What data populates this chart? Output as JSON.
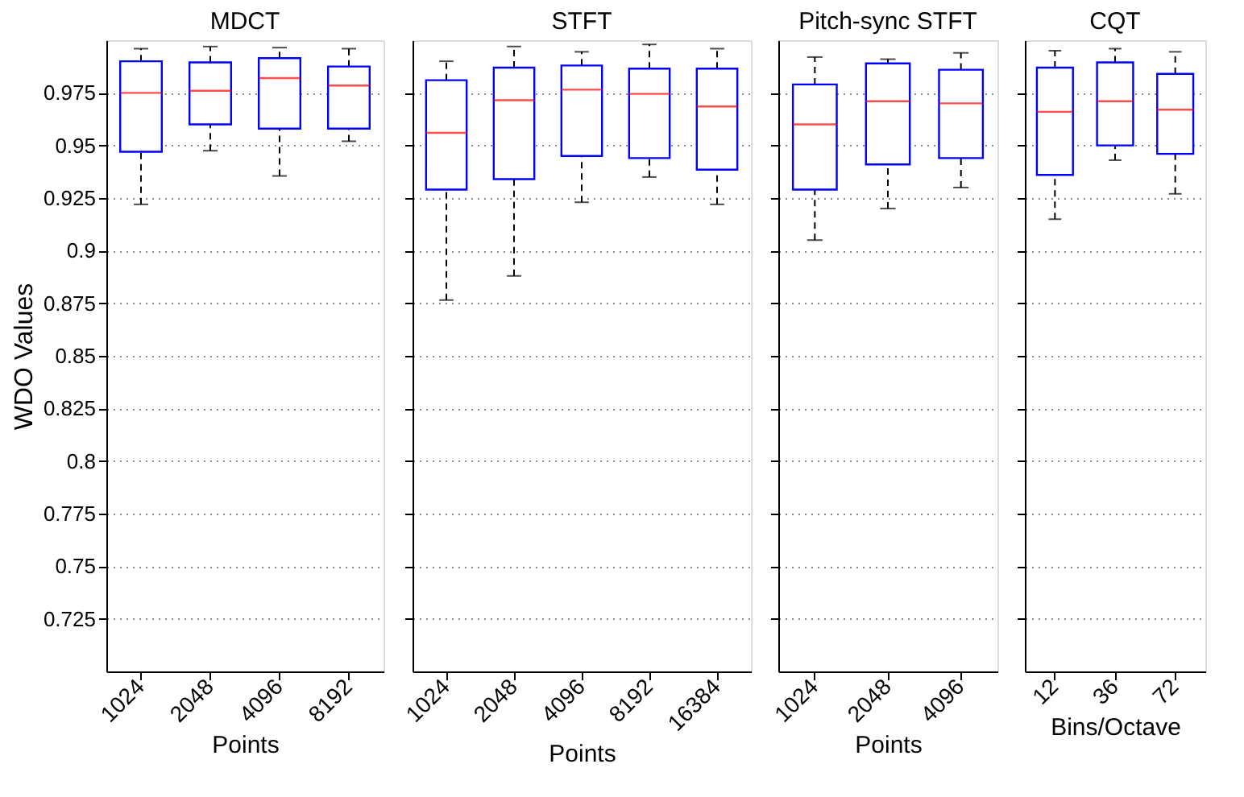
{
  "chart_data": [
    {
      "type": "box",
      "title": "MDCT",
      "xlabel": "Points",
      "ylabel": "WDO  Values",
      "categories": [
        "1024",
        "2048",
        "4096",
        "8192"
      ],
      "ylim": [
        0.7,
        1.0
      ],
      "yticks": [
        0.725,
        0.75,
        0.775,
        0.8,
        0.825,
        0.85,
        0.875,
        0.9,
        0.925,
        0.95,
        0.975
      ],
      "grid": "y",
      "boxes": [
        {
          "low": 0.922,
          "q1": 0.947,
          "median": 0.975,
          "q3": 0.99,
          "high": 0.996
        },
        {
          "low": 0.9475,
          "q1": 0.96,
          "median": 0.976,
          "q3": 0.9895,
          "high": 0.997
        },
        {
          "low": 0.9355,
          "q1": 0.958,
          "median": 0.982,
          "q3": 0.9915,
          "high": 0.9965
        },
        {
          "low": 0.952,
          "q1": 0.958,
          "median": 0.9785,
          "q3": 0.9875,
          "high": 0.996
        }
      ]
    },
    {
      "type": "box",
      "title": "STFT",
      "xlabel": "Points",
      "categories": [
        "1024",
        "2048",
        "4096",
        "8192",
        "16384"
      ],
      "ylim": [
        0.7,
        1.0
      ],
      "yticks": [
        0.725,
        0.75,
        0.775,
        0.8,
        0.825,
        0.85,
        0.875,
        0.9,
        0.925,
        0.95,
        0.975
      ],
      "grid": "y",
      "tick_labels": "x",
      "boxes": [
        {
          "low": 0.8765,
          "q1": 0.929,
          "median": 0.956,
          "q3": 0.981,
          "high": 0.99
        },
        {
          "low": 0.888,
          "q1": 0.934,
          "median": 0.9715,
          "q3": 0.987,
          "high": 0.997
        },
        {
          "low": 0.923,
          "q1": 0.945,
          "median": 0.9765,
          "q3": 0.988,
          "high": 0.9945
        },
        {
          "low": 0.935,
          "q1": 0.944,
          "median": 0.9745,
          "q3": 0.9865,
          "high": 0.998
        },
        {
          "low": 0.922,
          "q1": 0.9385,
          "median": 0.9685,
          "q3": 0.9865,
          "high": 0.996
        }
      ]
    },
    {
      "type": "box",
      "title": "Pitch-sync STFT",
      "xlabel": "Points",
      "categories": [
        "1024",
        "2048",
        "4096"
      ],
      "ylim": [
        0.7,
        1.0
      ],
      "yticks": [
        0.725,
        0.75,
        0.775,
        0.8,
        0.825,
        0.85,
        0.875,
        0.9,
        0.925,
        0.95,
        0.975
      ],
      "grid": "y",
      "tick_labels": "x",
      "boxes": [
        {
          "low": 0.905,
          "q1": 0.929,
          "median": 0.96,
          "q3": 0.979,
          "high": 0.992
        },
        {
          "low": 0.92,
          "q1": 0.941,
          "median": 0.971,
          "q3": 0.989,
          "high": 0.991
        },
        {
          "low": 0.93,
          "q1": 0.944,
          "median": 0.97,
          "q3": 0.986,
          "high": 0.994
        }
      ]
    },
    {
      "type": "box",
      "title": "CQT",
      "xlabel": "Bins/Octave",
      "categories": [
        "12",
        "36",
        "72"
      ],
      "ylim": [
        0.7,
        1.0
      ],
      "yticks": [
        0.725,
        0.75,
        0.775,
        0.8,
        0.825,
        0.85,
        0.875,
        0.9,
        0.925,
        0.95,
        0.975
      ],
      "grid": "y",
      "tick_labels": "x",
      "boxes": [
        {
          "low": 0.915,
          "q1": 0.936,
          "median": 0.966,
          "q3": 0.987,
          "high": 0.995
        },
        {
          "low": 0.943,
          "q1": 0.95,
          "median": 0.971,
          "q3": 0.9895,
          "high": 0.996
        },
        {
          "low": 0.927,
          "q1": 0.946,
          "median": 0.967,
          "q3": 0.984,
          "high": 0.9945
        }
      ]
    }
  ]
}
